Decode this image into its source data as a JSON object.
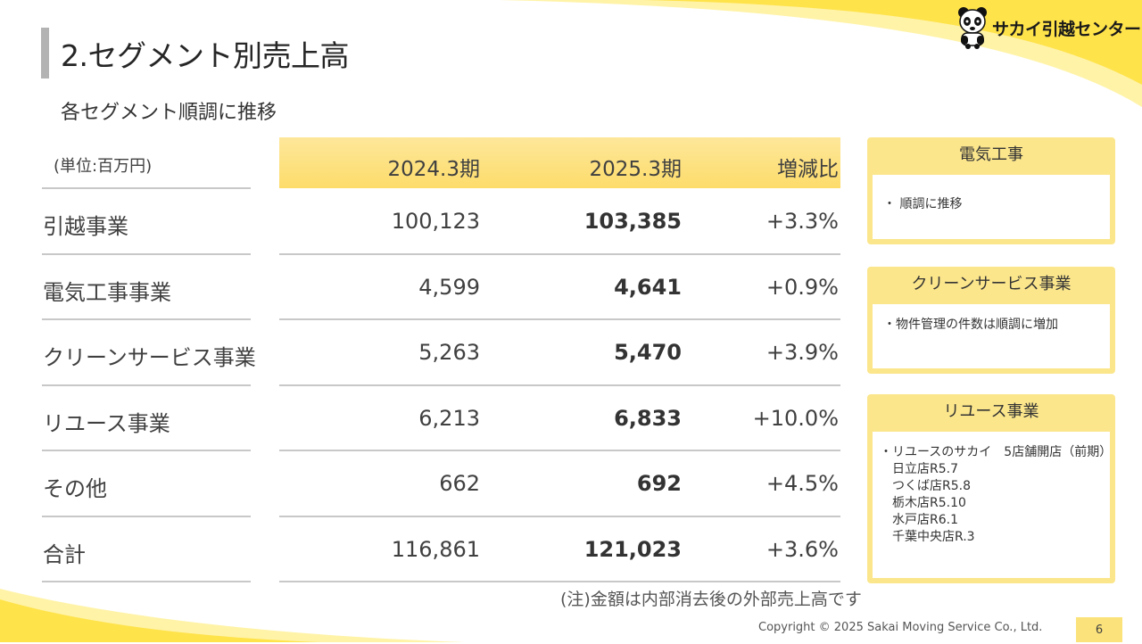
{
  "title": "2.セグメント別売上高",
  "subtitle": "各セグメント順調に推移",
  "logo": {
    "text": "サカイ引越センター",
    "icon": "panda-icon"
  },
  "table": {
    "unit_label": "(単位:百万円)",
    "headers": [
      "2024.3期",
      "2025.3期",
      "増減比"
    ],
    "rows": [
      {
        "label": "引越事業",
        "prev": "100,123",
        "curr": "103,385",
        "change": "+3.3%"
      },
      {
        "label": "電気工事事業",
        "prev": "4,599",
        "curr": "4,641",
        "change": "+0.9%"
      },
      {
        "label": "クリーンサービス事業",
        "prev": "5,263",
        "curr": "5,470",
        "change": "+3.9%"
      },
      {
        "label": "リユース事業",
        "prev": "6,213",
        "curr": "6,833",
        "change": "+10.0%"
      },
      {
        "label": "その他",
        "prev": "662",
        "curr": "692",
        "change": "+4.5%"
      },
      {
        "label": "合計",
        "prev": "116,861",
        "curr": "121,023",
        "change": "+3.6%"
      }
    ],
    "note": "(注)金額は内部消去後の外部売上高です"
  },
  "side_boxes": [
    {
      "title": "電気工事",
      "body": "・ 順調に推移"
    },
    {
      "title": "クリーンサービス事業",
      "body": "・物件管理の件数は順調に増加"
    },
    {
      "title": "リユース事業",
      "body": "・リユースのサカイ　5店舗開店（前期）\n　日立店R5.7\n　つくば店R5.8\n　栃木店R5.10\n　水戸店R6.1\n　千葉中央店R.3"
    }
  ],
  "footer": {
    "copyright": "Copyright © 2025 Sakai Moving Service Co., Ltd.",
    "page": "6"
  },
  "colors": {
    "accent_yellow": "#fbe68c",
    "header_band": "#fddc6b",
    "title_bar": "#b3b3b3"
  }
}
